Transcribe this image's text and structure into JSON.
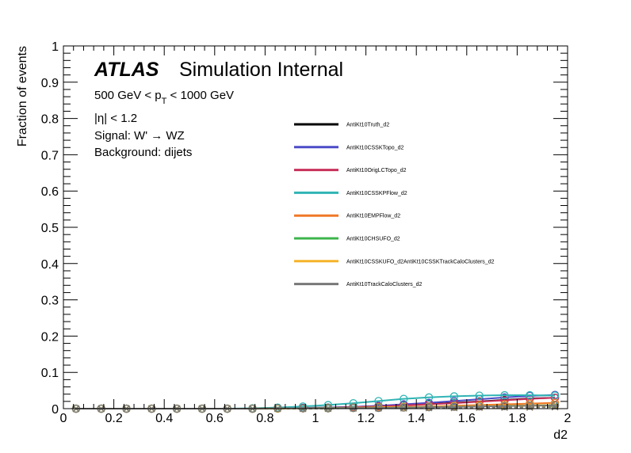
{
  "chart_data": {
    "type": "line",
    "title": "",
    "xlabel": "d2",
    "ylabel": "Fraction of events",
    "xlim": [
      0,
      2
    ],
    "ylim": [
      0,
      1
    ],
    "x_ticks": [
      "0",
      "0.2",
      "0.4",
      "0.6",
      "0.8",
      "1",
      "1.2",
      "1.4",
      "1.6",
      "1.8",
      "2"
    ],
    "y_ticks": [
      "0",
      "0.1",
      "0.2",
      "0.3",
      "0.4",
      "0.5",
      "0.6",
      "0.7",
      "0.8",
      "0.9",
      "1"
    ],
    "grid": false,
    "legend_position": "center-right",
    "annotations": {
      "atlas": "ATLAS",
      "label": "Simulation Internal",
      "pt_prefix": "500 GeV < p",
      "pt_sub": "T",
      "pt_suffix": " < 1000 GeV",
      "eta": "|η| < 1.2",
      "signal": "Signal: W' → WZ",
      "background": "Background: dijets"
    },
    "series": [
      {
        "name": "AntiKt10Truth_d2",
        "color": "#000000",
        "x": [
          0.05,
          0.15,
          0.25,
          0.35,
          0.45,
          0.55,
          0.65,
          0.75,
          0.85,
          0.95,
          1.05,
          1.15,
          1.25,
          1.35,
          1.45,
          1.55,
          1.65,
          1.75,
          1.85,
          1.95
        ],
        "signal": [
          0,
          0,
          0,
          0,
          0,
          0,
          0,
          0,
          0.001,
          0.002,
          0.003,
          0.005,
          0.007,
          0.01,
          0.013,
          0.016,
          0.02,
          0.024,
          0.028,
          0.03
        ],
        "background": [
          0,
          0,
          0,
          0,
          0,
          0,
          0,
          0,
          0,
          0,
          0.001,
          0.001,
          0.002,
          0.002,
          0.003,
          0.004,
          0.005,
          0.006,
          0.007,
          0.008
        ]
      },
      {
        "name": "AntiKt10CSSKTopo_d2",
        "color": "#4b4bc8",
        "x": [
          0.05,
          0.15,
          0.25,
          0.35,
          0.45,
          0.55,
          0.65,
          0.75,
          0.85,
          0.95,
          1.05,
          1.15,
          1.25,
          1.35,
          1.45,
          1.55,
          1.65,
          1.75,
          1.85,
          1.95
        ],
        "signal": [
          0,
          0,
          0,
          0,
          0,
          0,
          0,
          0,
          0.001,
          0.002,
          0.003,
          0.005,
          0.008,
          0.012,
          0.016,
          0.021,
          0.026,
          0.031,
          0.035,
          0.038
        ],
        "background": [
          0,
          0,
          0,
          0,
          0,
          0,
          0,
          0,
          0,
          0.001,
          0.001,
          0.002,
          0.002,
          0.003,
          0.004,
          0.005,
          0.006,
          0.007,
          0.008,
          0.009
        ]
      },
      {
        "name": "AntiKt10OrigLCTopo_d2",
        "color": "#c8305a",
        "x": [
          0.05,
          0.15,
          0.25,
          0.35,
          0.45,
          0.55,
          0.65,
          0.75,
          0.85,
          0.95,
          1.05,
          1.15,
          1.25,
          1.35,
          1.45,
          1.55,
          1.65,
          1.75,
          1.85,
          1.95
        ],
        "signal": [
          0,
          0,
          0,
          0,
          0,
          0,
          0,
          0,
          0.001,
          0.001,
          0.002,
          0.004,
          0.006,
          0.009,
          0.012,
          0.015,
          0.019,
          0.023,
          0.027,
          0.03
        ],
        "background": [
          0,
          0,
          0,
          0,
          0,
          0,
          0,
          0,
          0,
          0,
          0.001,
          0.001,
          0.002,
          0.002,
          0.003,
          0.004,
          0.005,
          0.006,
          0.007,
          0.008
        ]
      },
      {
        "name": "AntiKt10CSSKPFlow_d2",
        "color": "#30b4b4",
        "x": [
          0.05,
          0.15,
          0.25,
          0.35,
          0.45,
          0.55,
          0.65,
          0.75,
          0.85,
          0.95,
          1.05,
          1.15,
          1.25,
          1.35,
          1.45,
          1.55,
          1.65,
          1.75,
          1.85,
          1.95
        ],
        "signal": [
          0,
          0,
          0,
          0,
          0,
          0,
          0,
          0.001,
          0.003,
          0.006,
          0.01,
          0.015,
          0.021,
          0.027,
          0.031,
          0.034,
          0.036,
          0.037,
          0.037,
          0.036
        ],
        "background": [
          0,
          0,
          0,
          0,
          0,
          0,
          0,
          0,
          0.001,
          0.001,
          0.002,
          0.003,
          0.004,
          0.005,
          0.006,
          0.007,
          0.008,
          0.009,
          0.01,
          0.011
        ]
      },
      {
        "name": "AntiKt10EMPFlow_d2",
        "color": "#f07828",
        "x": [
          0.05,
          0.15,
          0.25,
          0.35,
          0.45,
          0.55,
          0.65,
          0.75,
          0.85,
          0.95,
          1.05,
          1.15,
          1.25,
          1.35,
          1.45,
          1.55,
          1.65,
          1.75,
          1.85,
          1.95
        ],
        "signal": [
          0,
          0,
          0,
          0,
          0,
          0,
          0,
          0,
          0.001,
          0.001,
          0.002,
          0.003,
          0.004,
          0.005,
          0.006,
          0.008,
          0.01,
          0.012,
          0.014,
          0.016
        ],
        "background": [
          0,
          0,
          0,
          0,
          0,
          0,
          0,
          0,
          0,
          0,
          0.001,
          0.001,
          0.002,
          0.002,
          0.003,
          0.003,
          0.004,
          0.005,
          0.005,
          0.006
        ]
      },
      {
        "name": "AntiKt10CHSUFO_d2",
        "color": "#3cb44b",
        "x": [
          0.05,
          0.15,
          0.25,
          0.35,
          0.45,
          0.55,
          0.65,
          0.75,
          0.85,
          0.95,
          1.05,
          1.15,
          1.25,
          1.35,
          1.45,
          1.55,
          1.65,
          1.75,
          1.85,
          1.95
        ],
        "signal": [
          0,
          0,
          0,
          0,
          0,
          0,
          0,
          0,
          0.001,
          0.001,
          0.002,
          0.002,
          0.003,
          0.004,
          0.005,
          0.006,
          0.007,
          0.008,
          0.009,
          0.01
        ],
        "background": [
          0,
          0,
          0,
          0,
          0,
          0,
          0,
          0,
          0,
          0,
          0,
          0.001,
          0.001,
          0.002,
          0.002,
          0.003,
          0.003,
          0.004,
          0.004,
          0.005
        ]
      },
      {
        "name": "AntiKt10CSSKUFO_d2AntiKt10CSSKTrackCaloClusters_d2",
        "color": "#f5b428",
        "x": [
          0.05,
          0.15,
          0.25,
          0.35,
          0.45,
          0.55,
          0.65,
          0.75,
          0.85,
          0.95,
          1.05,
          1.15,
          1.25,
          1.35,
          1.45,
          1.55,
          1.65,
          1.75,
          1.85,
          1.95
        ],
        "signal": [
          0,
          0,
          0,
          0,
          0,
          0,
          0,
          0,
          0,
          0.001,
          0.001,
          0.002,
          0.003,
          0.004,
          0.005,
          0.006,
          0.007,
          0.008,
          0.009,
          0.01
        ],
        "background": [
          0,
          0,
          0,
          0,
          0,
          0,
          0,
          0,
          0,
          0,
          0,
          0.001,
          0.001,
          0.001,
          0.002,
          0.002,
          0.003,
          0.003,
          0.004,
          0.004
        ]
      },
      {
        "name": "AntiKt10TrackCaloClusters_d2",
        "color": "#787878",
        "x": [
          0.05,
          0.15,
          0.25,
          0.35,
          0.45,
          0.55,
          0.65,
          0.75,
          0.85,
          0.95,
          1.05,
          1.15,
          1.25,
          1.35,
          1.45,
          1.55,
          1.65,
          1.75,
          1.85,
          1.95
        ],
        "signal": [
          0,
          0,
          0,
          0,
          0,
          0,
          0,
          0,
          0.001,
          0.001,
          0.001,
          0.002,
          0.002,
          0.003,
          0.004,
          0.005,
          0.006,
          0.007,
          0.008,
          0.009
        ],
        "background": [
          0,
          0,
          0,
          0,
          0,
          0,
          0,
          0,
          0,
          0,
          0,
          0.001,
          0.001,
          0.001,
          0.002,
          0.002,
          0.003,
          0.003,
          0.003,
          0.004
        ]
      }
    ]
  }
}
